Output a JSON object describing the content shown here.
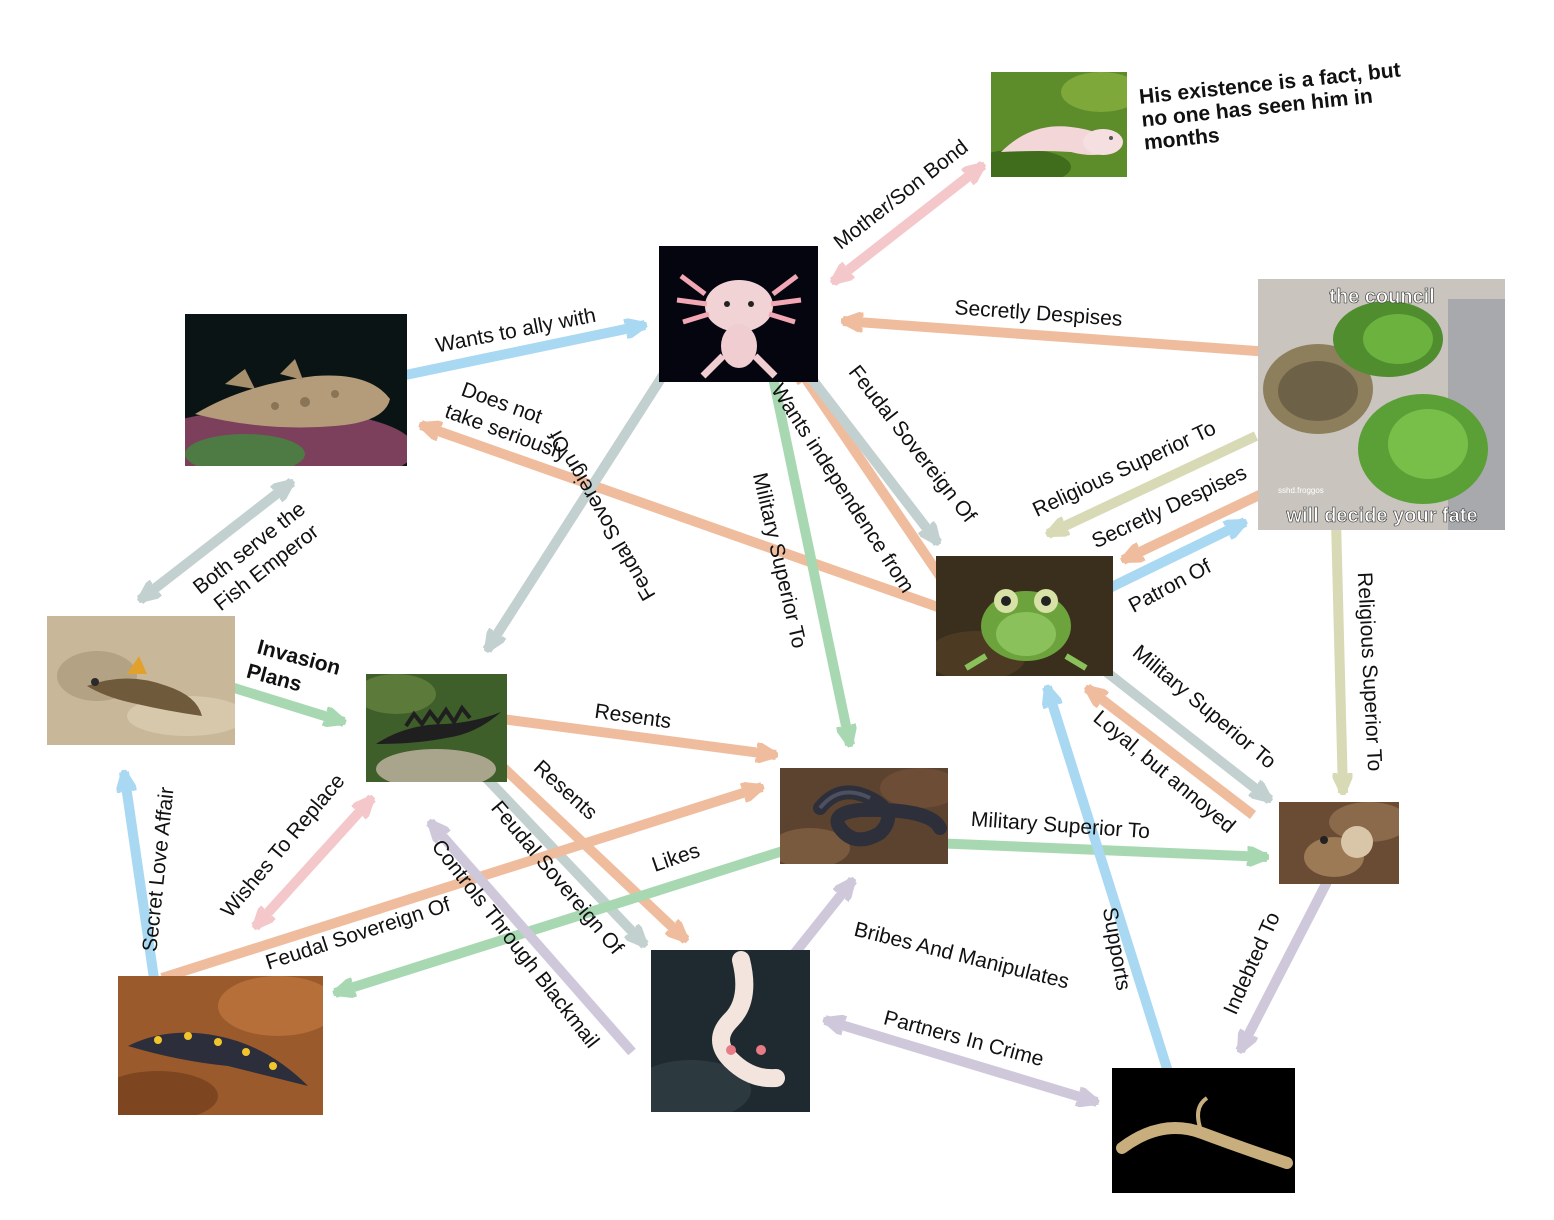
{
  "colors": {
    "orange": "#efbd9e",
    "blue": "#a9d8f2",
    "green": "#a8d8b2",
    "grey": "#c3d0d0",
    "pink": "#f4c7ca",
    "lavender": "#cfc8db",
    "khaki": "#d8d9b5"
  },
  "nodes": {
    "pink_salamander": {
      "name": "pink salamander on moss",
      "caption": "His existence is a fact, but no one has seen him in months"
    },
    "axolotl": {
      "name": "axolotl"
    },
    "council": {
      "name": "three horned frogs meme",
      "top_text": "the council",
      "bottom_text": "will decide your fate",
      "watermark": "sshd.froggos"
    },
    "wobbegong": {
      "name": "wobbegong shark"
    },
    "mudskipper": {
      "name": "mudskipper"
    },
    "newt": {
      "name": "crested newt"
    },
    "glass_frog": {
      "name": "glass frog"
    },
    "caecilian": {
      "name": "caecilian"
    },
    "singing_frog": {
      "name": "calling frog"
    },
    "spotted_salamander": {
      "name": "spotted salamander"
    },
    "olm": {
      "name": "olm"
    },
    "legless_lizard": {
      "name": "legless lizard"
    }
  },
  "edges": [
    {
      "label": "Mother/Son Bond",
      "color": "pink"
    },
    {
      "label": "Secretly Despises",
      "color": "orange"
    },
    {
      "label": "Wants to ally with",
      "color": "blue"
    },
    {
      "label": "Does not take seriously",
      "line1": "Does not",
      "line2": "take seriously",
      "color": "orange"
    },
    {
      "label": "Feudal Sovereign Of",
      "color": "grey"
    },
    {
      "label": "Military Superior To",
      "color": "green"
    },
    {
      "label": "Wants independence from",
      "color": "orange"
    },
    {
      "label": "Feudal Sovereign Of",
      "color": "grey"
    },
    {
      "label": "Religious Superior To",
      "color": "khaki"
    },
    {
      "label": "Secretly Despises",
      "color": "orange"
    },
    {
      "label": "Patron Of",
      "color": "blue"
    },
    {
      "label": "Religious Superior To",
      "color": "khaki"
    },
    {
      "label": "Both serve the Fish Emperor",
      "line1": "Both serve the",
      "line2": "Fish Emperor",
      "color": "grey"
    },
    {
      "label": "Invasion Plans",
      "line1": "Invasion",
      "line2": "Plans",
      "color": "green"
    },
    {
      "label": "Resents",
      "color": "orange"
    },
    {
      "label": "Resents",
      "color": "orange"
    },
    {
      "label": "Feudal Sovereign Of",
      "color": "grey"
    },
    {
      "label": "Loyal, but annoyed",
      "color": "orange"
    },
    {
      "label": "Military Superior To",
      "color": "green"
    },
    {
      "label": "Military Superior To",
      "color": "green"
    },
    {
      "label": "Likes",
      "color": "blue"
    },
    {
      "label": "Secret Love Affair",
      "color": "pink"
    },
    {
      "label": "Wishes To Replace",
      "color": "orange"
    },
    {
      "label": "Feudal Sovereign Of",
      "color": "grey"
    },
    {
      "label": "Controls Through Blackmail",
      "color": "lavender"
    },
    {
      "label": "Bribes And Manipulates",
      "color": "lavender"
    },
    {
      "label": "Partners In Crime",
      "color": "lavender"
    },
    {
      "label": "Supports",
      "color": "blue"
    },
    {
      "label": "Indebted To",
      "color": "lavender"
    }
  ]
}
